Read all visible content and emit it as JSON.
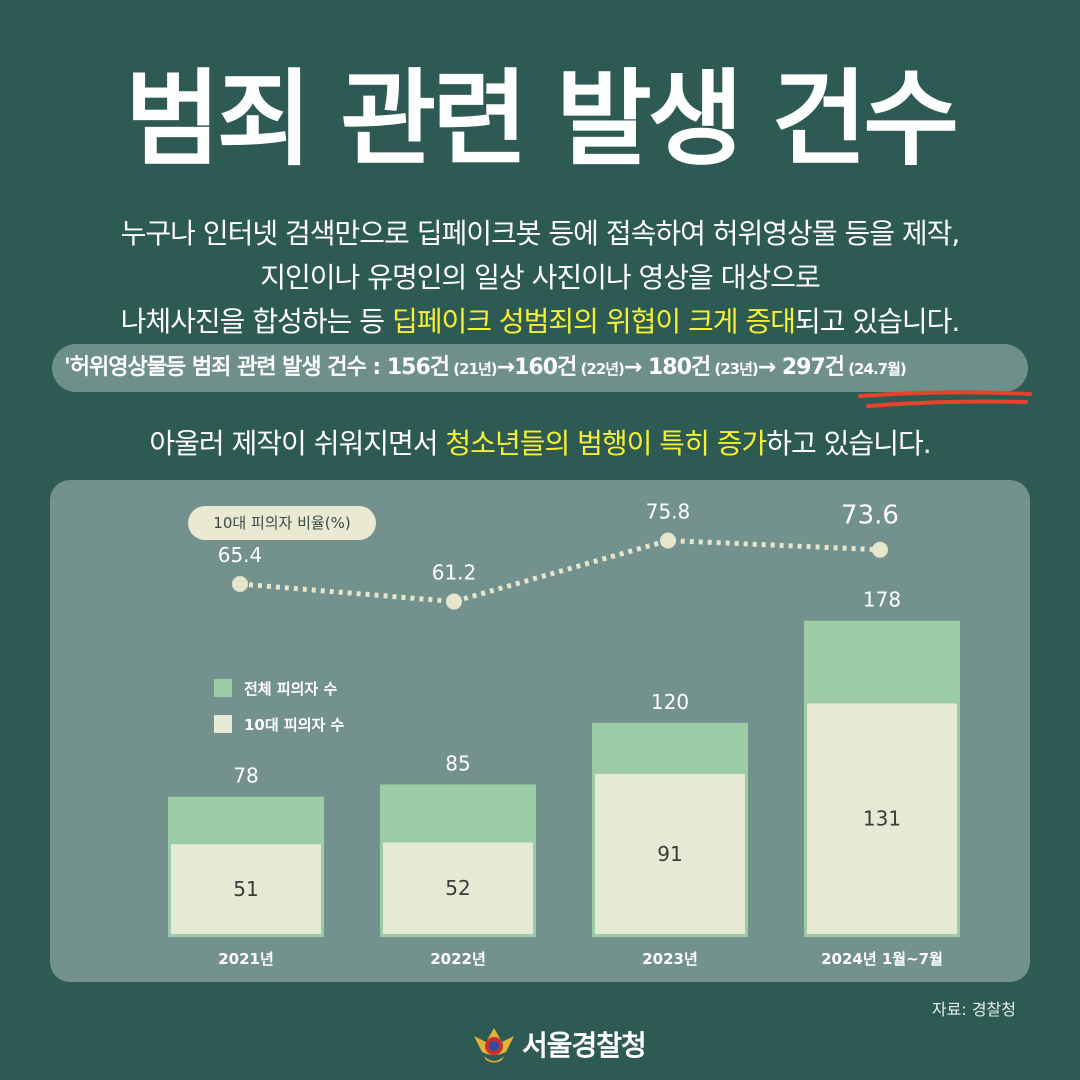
{
  "title": "범죄 관련 발생 건수",
  "description": {
    "line1": "누구나 인터넷 검색만으로 딥페이크봇 등에 접속하여 허위영상물 등을 제작,",
    "line2": "지인이나 유명인의 일상 사진이나 영상을 대상으로",
    "line3_pre": "나체사진을 합성하는 등 ",
    "line3_highlight": "딥페이크 성범죄의 위협이 크게 증대",
    "line3_post": "되고 있습니다."
  },
  "stat": {
    "label": "'허위영상물등 범죄 관련 발생 건수 : ",
    "v1": "156건",
    "y1": " (21년)",
    "arrow1": "→",
    "v2": "160건",
    "y2": " (22년)",
    "arrow2": "→ ",
    "v3": "180건",
    "y3": " (23년)",
    "arrow3": "→ ",
    "v4": "297건",
    "y4": " (24.7월)"
  },
  "teen": {
    "pre": "아울러  제작이 쉬워지면서 ",
    "highlight": "청소년들의 범행이 특히 증가",
    "post": "하고 있습니다."
  },
  "chart_data": {
    "type": "bar",
    "categories": [
      "2021년",
      "2022년",
      "2023년",
      "2024년 1월~7월"
    ],
    "series": [
      {
        "name": "전체 피의자 수",
        "values": [
          78,
          85,
          120,
          178
        ]
      },
      {
        "name": "10대 피의자 수",
        "values": [
          51,
          52,
          91,
          131
        ]
      }
    ],
    "line_series": {
      "name": "10대 피의자 비율(%)",
      "values": [
        65.4,
        61.2,
        75.8,
        73.6
      ]
    },
    "legend_placement": "left",
    "grid": false
  },
  "colors": {
    "background": "#2e5a54",
    "panel": "#73918d",
    "total_bar": "#9ccca6",
    "teen_bar": "#e6e9d4",
    "highlight": "#f5f032",
    "underline": "#e8412c",
    "line": "#e6e6cc"
  },
  "source": "자료: 경찰청",
  "footer": {
    "logo_icon": "police-emblem-icon",
    "name": "서울경찰청"
  }
}
